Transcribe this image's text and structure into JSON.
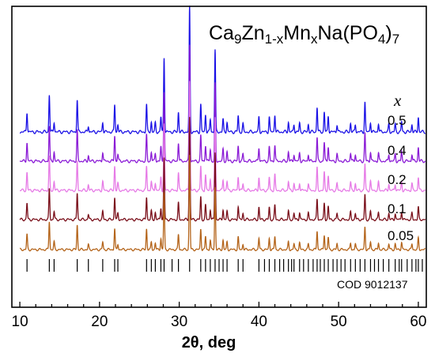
{
  "chart_data": {
    "type": "line",
    "title": {
      "parts": [
        {
          "text": "Ca",
          "sub": false
        },
        {
          "text": "9",
          "sub": true
        },
        {
          "text": "Zn",
          "sub": false
        },
        {
          "text": "1-x",
          "sub": true
        },
        {
          "text": "Mn",
          "sub": false
        },
        {
          "text": "x",
          "sub": true
        },
        {
          "text": "Na(PO",
          "sub": false
        },
        {
          "text": "4",
          "sub": true
        },
        {
          "text": ")",
          "sub": false
        },
        {
          "text": "7",
          "sub": true
        }
      ]
    },
    "xlabel": "2θ, deg",
    "series_header": "x",
    "xlim": [
      9,
      61
    ],
    "xticks": [
      "10",
      "20",
      "30",
      "40",
      "50",
      "60"
    ],
    "grid": false,
    "series": [
      {
        "name": "0.5",
        "color": "#1a10e6"
      },
      {
        "name": "0.4",
        "color": "#8a1ad6"
      },
      {
        "name": "0.2",
        "color": "#e67ae6"
      },
      {
        "name": "0.1",
        "color": "#7a0f1a"
      },
      {
        "name": "0.05",
        "color": "#b4641a"
      }
    ],
    "peaks": [
      [
        10.9,
        0.16
      ],
      [
        13.7,
        0.3
      ],
      [
        14.3,
        0.08
      ],
      [
        17.2,
        0.26
      ],
      [
        18.6,
        0.05
      ],
      [
        20.4,
        0.08
      ],
      [
        21.9,
        0.22
      ],
      [
        22.3,
        0.06
      ],
      [
        25.9,
        0.22
      ],
      [
        26.5,
        0.08
      ],
      [
        27.0,
        0.07
      ],
      [
        27.7,
        0.12
      ],
      [
        28.1,
        0.6
      ],
      [
        29.9,
        0.16
      ],
      [
        31.3,
        1.0
      ],
      [
        32.7,
        0.22
      ],
      [
        33.3,
        0.14
      ],
      [
        33.9,
        0.1
      ],
      [
        34.5,
        0.66
      ],
      [
        35.5,
        0.1
      ],
      [
        36.0,
        0.08
      ],
      [
        37.4,
        0.13
      ],
      [
        38.0,
        0.06
      ],
      [
        40.0,
        0.12
      ],
      [
        41.3,
        0.12
      ],
      [
        42.0,
        0.14
      ],
      [
        43.7,
        0.08
      ],
      [
        44.4,
        0.06
      ],
      [
        45.1,
        0.07
      ],
      [
        46.2,
        0.06
      ],
      [
        47.3,
        0.2
      ],
      [
        48.2,
        0.16
      ],
      [
        48.7,
        0.13
      ],
      [
        49.8,
        0.06
      ],
      [
        51.5,
        0.07
      ],
      [
        52.1,
        0.06
      ],
      [
        53.3,
        0.24
      ],
      [
        54.0,
        0.08
      ],
      [
        55.0,
        0.07
      ],
      [
        56.3,
        0.06
      ],
      [
        57.1,
        0.06
      ],
      [
        57.9,
        0.08
      ],
      [
        59.2,
        0.06
      ],
      [
        60.0,
        0.12
      ]
    ],
    "reference": {
      "label": "COD 9012137",
      "positions": [
        10.9,
        13.7,
        14.3,
        17.2,
        18.6,
        20.4,
        21.9,
        22.3,
        25.9,
        26.5,
        27.0,
        27.7,
        28.1,
        29.1,
        29.9,
        31.3,
        32.7,
        33.3,
        33.9,
        34.5,
        35.0,
        35.5,
        36.0,
        37.4,
        38.0,
        40.0,
        40.7,
        41.3,
        42.0,
        42.6,
        43.1,
        43.7,
        44.1,
        44.4,
        45.1,
        45.6,
        46.2,
        46.8,
        47.3,
        47.7,
        48.2,
        48.7,
        49.3,
        49.8,
        50.3,
        50.8,
        51.5,
        52.1,
        52.7,
        53.3,
        54.0,
        54.5,
        55.0,
        55.6,
        56.3,
        57.1,
        57.6,
        57.9,
        58.6,
        59.2,
        59.7,
        60.0,
        60.5
      ]
    }
  }
}
